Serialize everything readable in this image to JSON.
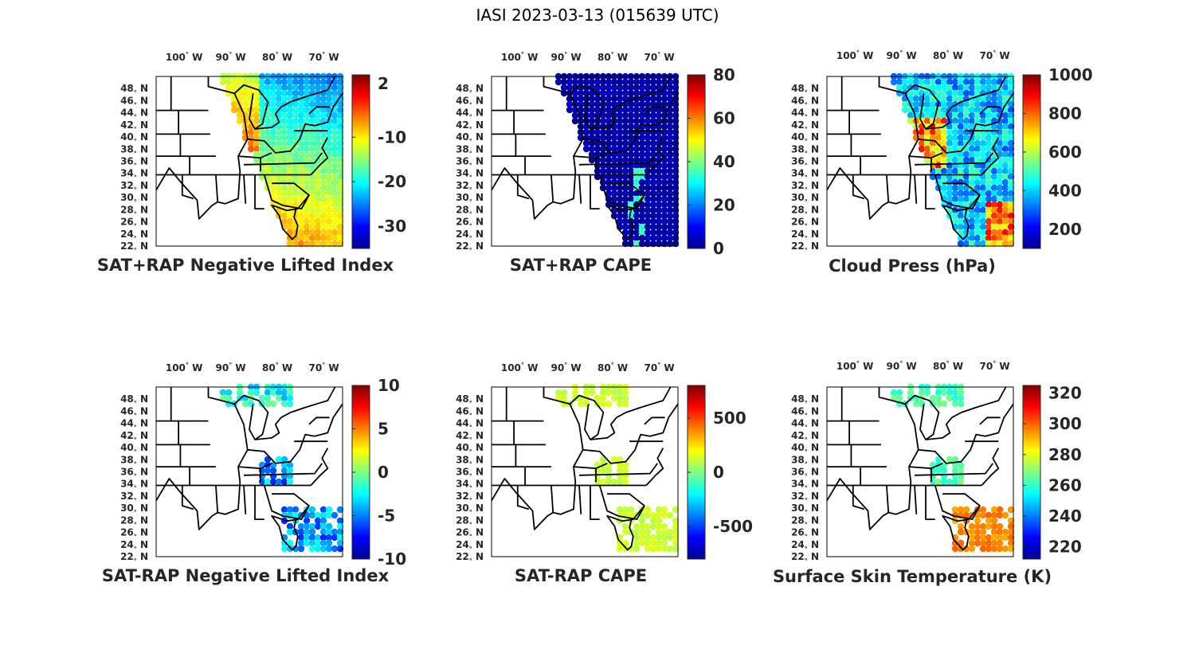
{
  "figure_title": "IASI 2023-03-13 (015639 UTC)",
  "lon_labels": [
    {
      "value": "100",
      "dir": "W"
    },
    {
      "value": "90",
      "dir": "W"
    },
    {
      "value": "80",
      "dir": "W"
    },
    {
      "value": "70",
      "dir": "W"
    }
  ],
  "lat_labels": [
    {
      "value": "48",
      "dir": "N"
    },
    {
      "value": "46",
      "dir": "N"
    },
    {
      "value": "44",
      "dir": "N"
    },
    {
      "value": "42",
      "dir": "N"
    },
    {
      "value": "40",
      "dir": "N"
    },
    {
      "value": "38",
      "dir": "N"
    },
    {
      "value": "36",
      "dir": "N"
    },
    {
      "value": "34",
      "dir": "N"
    },
    {
      "value": "32",
      "dir": "N"
    },
    {
      "value": "30",
      "dir": "N"
    },
    {
      "value": "28",
      "dir": "N"
    },
    {
      "value": "26",
      "dir": "N"
    },
    {
      "value": "24",
      "dir": "N"
    },
    {
      "value": "22",
      "dir": "N"
    }
  ],
  "colormap": "jet",
  "map_extent": {
    "lon_min": -106,
    "lon_max": -66,
    "lat_min": 22,
    "lat_max": 50
  },
  "panels": [
    {
      "title": "SAT+RAP Negative Lifted Index",
      "colorbar": {
        "min": -35,
        "max": 4,
        "ticks": [
          "2",
          "-10",
          "-20",
          "-30"
        ],
        "tick_values": [
          2,
          -10,
          -20,
          -30
        ]
      },
      "field_type": "li_pos",
      "swath": "full"
    },
    {
      "title": "SAT+RAP CAPE",
      "colorbar": {
        "min": 0,
        "max": 80,
        "ticks": [
          "80",
          "60",
          "40",
          "20",
          "0"
        ],
        "tick_values": [
          80,
          60,
          40,
          20,
          0
        ]
      },
      "field_type": "cape_pos",
      "swath": "full"
    },
    {
      "title": "Cloud Press (hPa)",
      "colorbar": {
        "min": 100,
        "max": 1000,
        "ticks": [
          "1000",
          "800",
          "600",
          "400",
          "200"
        ],
        "tick_values": [
          1000,
          800,
          600,
          400,
          200
        ]
      },
      "field_type": "cloud",
      "swath": "full"
    },
    {
      "title": "SAT-RAP Negative Lifted Index",
      "colorbar": {
        "min": -10,
        "max": 10,
        "ticks": [
          "10",
          "5",
          "0",
          "-5",
          "-10"
        ],
        "tick_values": [
          10,
          5,
          0,
          -5,
          -10
        ]
      },
      "field_type": "li_diff",
      "swath": "clear"
    },
    {
      "title": "SAT-RAP CAPE",
      "colorbar": {
        "min": -800,
        "max": 800,
        "ticks": [
          "500",
          "0",
          "-500"
        ],
        "tick_values": [
          500,
          0,
          -500
        ]
      },
      "field_type": "cape_diff",
      "swath": "clear"
    },
    {
      "title": "Surface Skin Temperature (K)",
      "colorbar": {
        "min": 212,
        "max": 325,
        "ticks": [
          "320",
          "300",
          "280",
          "260",
          "240",
          "220"
        ],
        "tick_values": [
          320,
          300,
          280,
          260,
          240,
          220
        ]
      },
      "field_type": "skin",
      "swath": "clear"
    }
  ]
}
